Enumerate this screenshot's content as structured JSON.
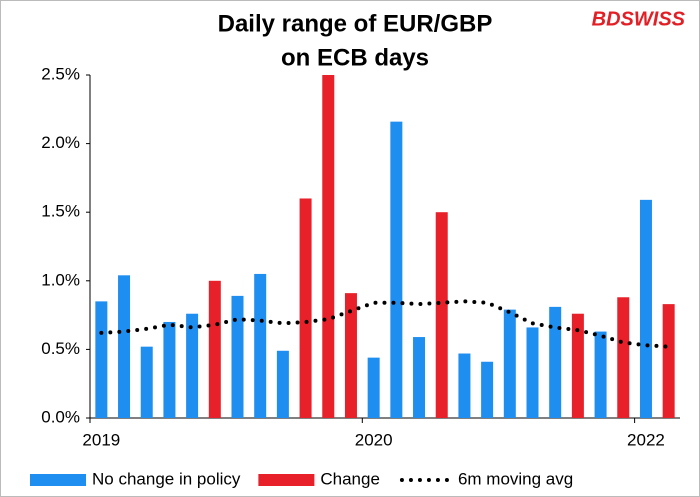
{
  "chart_data": {
    "type": "bar",
    "title": [
      "Daily range of EUR/GBP",
      "on ECB days"
    ],
    "brand": "BDSWISS",
    "categories": [
      "2019",
      null,
      null,
      null,
      null,
      null,
      null,
      null,
      null,
      null,
      null,
      null,
      "2020",
      null,
      null,
      null,
      null,
      null,
      null,
      null,
      null,
      null,
      null,
      null,
      "2022",
      null
    ],
    "series": [
      {
        "name": "No change in policy",
        "color": "#1f8ef1",
        "values": [
          0.85,
          1.04,
          0.52,
          0.7,
          0.76,
          null,
          0.89,
          1.05,
          0.49,
          null,
          null,
          null,
          0.44,
          2.16,
          0.59,
          null,
          0.47,
          0.41,
          0.79,
          0.66,
          0.81,
          null,
          0.63,
          null,
          1.59,
          null
        ]
      },
      {
        "name": "Change",
        "color": "#e8202a",
        "values": [
          null,
          null,
          null,
          null,
          null,
          1.0,
          null,
          null,
          null,
          1.6,
          2.5,
          0.91,
          null,
          null,
          null,
          1.5,
          null,
          null,
          null,
          null,
          null,
          0.76,
          null,
          0.88,
          null,
          0.83
        ]
      },
      {
        "name": "6m moving avg",
        "type": "line",
        "style": "dotted",
        "color": "#000000",
        "values": [
          0.62,
          0.63,
          0.65,
          0.68,
          0.66,
          0.68,
          0.72,
          0.71,
          0.69,
          0.7,
          0.72,
          0.78,
          0.84,
          0.84,
          0.83,
          0.84,
          0.85,
          0.84,
          0.77,
          0.69,
          0.66,
          0.64,
          0.6,
          0.55,
          0.53,
          0.52
        ]
      }
    ],
    "ylim": [
      0,
      2.5
    ],
    "yticks": [
      {
        "value": 0,
        "label": "0.0%"
      },
      {
        "value": 0.5,
        "label": "0.5%"
      },
      {
        "value": 1.0,
        "label": "1.0%"
      },
      {
        "value": 1.5,
        "label": "1.5%"
      },
      {
        "value": 2.0,
        "label": "2.0%"
      },
      {
        "value": 2.5,
        "label": "2.5%"
      }
    ],
    "grid": false,
    "legend": "bottom"
  }
}
